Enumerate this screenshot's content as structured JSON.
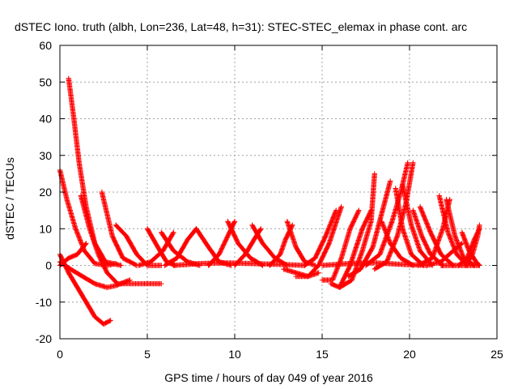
{
  "chart_data": {
    "type": "scatter",
    "title": "dSTEC Iono. truth (albh, Lon=236, Lat=48, h=31): STEC-STEC_elemax in phase cont. arc",
    "xlabel": "GPS time / hours of day 049 of year 2016",
    "ylabel": "dSTEC  / TECUs",
    "xlim": [
      0,
      25
    ],
    "ylim": [
      -20,
      60
    ],
    "x_ticks": [
      "0",
      "5",
      "10",
      "15",
      "20",
      "25"
    ],
    "y_ticks": [
      "-20",
      "-10",
      "0",
      "10",
      "20",
      "30",
      "40",
      "50",
      "60"
    ],
    "grid": true,
    "color": "#ff0000",
    "marker": "plus",
    "series": [
      {
        "points": [
          [
            0.0,
            26
          ],
          [
            0.4,
            18
          ],
          [
            0.9,
            10
          ],
          [
            1.4,
            4
          ],
          [
            2.0,
            0.5
          ],
          [
            2.7,
            0
          ],
          [
            3.2,
            0.5
          ]
        ]
      },
      {
        "points": [
          [
            0.0,
            3
          ],
          [
            0.5,
            -2
          ],
          [
            1.0,
            -6
          ],
          [
            1.5,
            -10
          ],
          [
            2.0,
            -14
          ],
          [
            2.5,
            -16
          ],
          [
            2.9,
            -15
          ]
        ]
      },
      {
        "points": [
          [
            0.0,
            0
          ],
          [
            0.5,
            2
          ],
          [
            1.0,
            3
          ],
          [
            1.5,
            6
          ]
        ]
      },
      {
        "points": [
          [
            0.5,
            51
          ],
          [
            0.8,
            40
          ],
          [
            1.1,
            28
          ],
          [
            1.5,
            16
          ],
          [
            2.0,
            6
          ],
          [
            2.6,
            1
          ],
          [
            3.5,
            0
          ]
        ]
      },
      {
        "points": [
          [
            1.2,
            19
          ],
          [
            1.7,
            10
          ],
          [
            2.2,
            3
          ],
          [
            2.7,
            -2
          ],
          [
            3.3,
            -5
          ],
          [
            4.2,
            -5
          ],
          [
            5.8,
            -5
          ]
        ]
      },
      {
        "points": [
          [
            0.0,
            1
          ],
          [
            0.6,
            -1
          ],
          [
            1.3,
            -3
          ],
          [
            2.0,
            -5
          ],
          [
            2.7,
            -6
          ],
          [
            3.2,
            -5.5
          ],
          [
            4.0,
            -4
          ]
        ]
      },
      {
        "points": [
          [
            2.4,
            20
          ],
          [
            3.0,
            8
          ],
          [
            3.6,
            2
          ],
          [
            4.4,
            0
          ]
        ]
      },
      {
        "points": [
          [
            3.2,
            11
          ],
          [
            3.8,
            8
          ],
          [
            4.4,
            3
          ],
          [
            5.0,
            0
          ],
          [
            5.8,
            0
          ]
        ]
      },
      {
        "points": [
          [
            5.0,
            10
          ],
          [
            5.6,
            5
          ],
          [
            6.1,
            1
          ],
          [
            6.6,
            0
          ]
        ]
      },
      {
        "points": [
          [
            5.8,
            9
          ],
          [
            6.5,
            4
          ],
          [
            7.3,
            1
          ],
          [
            8.0,
            0
          ]
        ]
      },
      {
        "points": [
          [
            4.5,
            0
          ],
          [
            5.2,
            1
          ],
          [
            5.9,
            4
          ],
          [
            6.5,
            9
          ]
        ]
      },
      {
        "points": [
          [
            6.0,
            0
          ],
          [
            6.7,
            2
          ],
          [
            7.3,
            7
          ],
          [
            7.8,
            10
          ]
        ]
      },
      {
        "points": [
          [
            7.8,
            10
          ],
          [
            8.5,
            5
          ],
          [
            9.1,
            1
          ],
          [
            9.8,
            0
          ]
        ]
      },
      {
        "points": [
          [
            8.5,
            0
          ],
          [
            9.1,
            3
          ],
          [
            9.6,
            8
          ],
          [
            10.0,
            12
          ]
        ]
      },
      {
        "points": [
          [
            9.6,
            12
          ],
          [
            10.2,
            6
          ],
          [
            10.9,
            2
          ],
          [
            11.6,
            0
          ]
        ]
      },
      {
        "points": [
          [
            10.0,
            0
          ],
          [
            10.6,
            3
          ],
          [
            11.1,
            7
          ],
          [
            11.5,
            10
          ]
        ]
      },
      {
        "points": [
          [
            11.0,
            11
          ],
          [
            11.6,
            6
          ],
          [
            12.3,
            2
          ],
          [
            13.0,
            0
          ]
        ]
      },
      {
        "points": [
          [
            12.0,
            0
          ],
          [
            12.6,
            3
          ],
          [
            12.9,
            7
          ],
          [
            13.3,
            11
          ]
        ]
      },
      {
        "points": [
          [
            13.0,
            12
          ],
          [
            13.5,
            5
          ],
          [
            14.0,
            1
          ],
          [
            14.6,
            0
          ]
        ]
      },
      {
        "points": [
          [
            6.5,
            0
          ],
          [
            8.0,
            0.5
          ],
          [
            9.5,
            0.7
          ],
          [
            11.0,
            0.5
          ],
          [
            12.5,
            0.3
          ],
          [
            14.0,
            0
          ]
        ]
      },
      {
        "points": [
          [
            12.8,
            -1
          ],
          [
            13.5,
            -2
          ],
          [
            14.2,
            -3
          ],
          [
            14.8,
            -2
          ]
        ]
      },
      {
        "points": [
          [
            14.0,
            0
          ],
          [
            14.6,
            2
          ],
          [
            15.2,
            8
          ],
          [
            15.8,
            15
          ]
        ]
      },
      {
        "points": [
          [
            13.5,
            -3
          ],
          [
            14.2,
            -3
          ],
          [
            14.8,
            0
          ],
          [
            15.4,
            6
          ],
          [
            16.1,
            16
          ]
        ]
      },
      {
        "points": [
          [
            15.0,
            -4
          ],
          [
            15.6,
            -4
          ],
          [
            16.1,
            2
          ],
          [
            16.6,
            10
          ],
          [
            17.1,
            15
          ]
        ]
      },
      {
        "points": [
          [
            15.5,
            -5
          ],
          [
            16.0,
            -6
          ],
          [
            16.6,
            0
          ],
          [
            17.3,
            10
          ],
          [
            17.8,
            15
          ]
        ]
      },
      {
        "points": [
          [
            16.0,
            -6
          ],
          [
            16.7,
            -4
          ],
          [
            17.3,
            4
          ],
          [
            17.8,
            12
          ],
          [
            18.0,
            25
          ]
        ]
      },
      {
        "points": [
          [
            16.5,
            -3
          ],
          [
            17.2,
            -1
          ],
          [
            17.9,
            5
          ],
          [
            18.4,
            14
          ],
          [
            18.9,
            23
          ]
        ]
      },
      {
        "points": [
          [
            17.5,
            0
          ],
          [
            18.3,
            3
          ],
          [
            19.0,
            12
          ],
          [
            19.5,
            20
          ],
          [
            19.9,
            28
          ]
        ]
      },
      {
        "points": [
          [
            18.0,
            -1
          ],
          [
            18.7,
            1
          ],
          [
            19.3,
            8
          ],
          [
            19.8,
            17
          ],
          [
            20.2,
            28
          ]
        ]
      },
      {
        "points": [
          [
            18.4,
            12
          ],
          [
            18.9,
            6
          ],
          [
            19.5,
            2
          ],
          [
            20.2,
            0
          ]
        ]
      },
      {
        "points": [
          [
            19.2,
            21
          ],
          [
            19.6,
            10
          ],
          [
            20.1,
            3
          ],
          [
            20.8,
            0
          ]
        ]
      },
      {
        "points": [
          [
            19.6,
            22
          ],
          [
            20.1,
            11
          ],
          [
            20.6,
            4
          ],
          [
            21.3,
            0
          ]
        ]
      },
      {
        "points": [
          [
            20.2,
            15
          ],
          [
            20.7,
            8
          ],
          [
            21.2,
            3
          ],
          [
            21.9,
            0
          ]
        ]
      },
      {
        "points": [
          [
            20.6,
            16
          ],
          [
            21.2,
            9
          ],
          [
            21.8,
            3
          ],
          [
            22.5,
            0
          ]
        ]
      },
      {
        "points": [
          [
            21.7,
            19
          ],
          [
            22.2,
            9
          ],
          [
            22.7,
            3
          ],
          [
            23.3,
            0
          ]
        ]
      },
      {
        "points": [
          [
            22.1,
            18
          ],
          [
            22.6,
            8
          ],
          [
            23.1,
            2
          ],
          [
            23.7,
            0
          ]
        ]
      },
      {
        "points": [
          [
            20.5,
            0
          ],
          [
            21.3,
            2
          ],
          [
            21.9,
            10
          ],
          [
            22.3,
            18
          ]
        ]
      },
      {
        "points": [
          [
            21.0,
            0
          ],
          [
            21.8,
            1
          ],
          [
            22.5,
            4
          ],
          [
            23.0,
            6
          ]
        ]
      },
      {
        "points": [
          [
            23.0,
            9
          ],
          [
            23.4,
            4
          ],
          [
            23.8,
            1
          ],
          [
            24.0,
            0
          ]
        ]
      },
      {
        "points": [
          [
            22.8,
            0
          ],
          [
            23.3,
            2
          ],
          [
            23.7,
            7
          ],
          [
            24.0,
            10
          ]
        ]
      },
      {
        "points": [
          [
            23.2,
            0
          ],
          [
            23.6,
            3
          ],
          [
            23.9,
            8
          ],
          [
            24.0,
            11
          ]
        ]
      },
      {
        "points": [
          [
            21.8,
            0
          ],
          [
            22.8,
            0
          ],
          [
            24.0,
            0
          ]
        ]
      },
      {
        "points": [
          [
            15.0,
            0
          ],
          [
            16.5,
            0.5
          ],
          [
            18.0,
            0.7
          ],
          [
            19.5,
            0.3
          ],
          [
            21.0,
            0
          ]
        ]
      }
    ]
  }
}
